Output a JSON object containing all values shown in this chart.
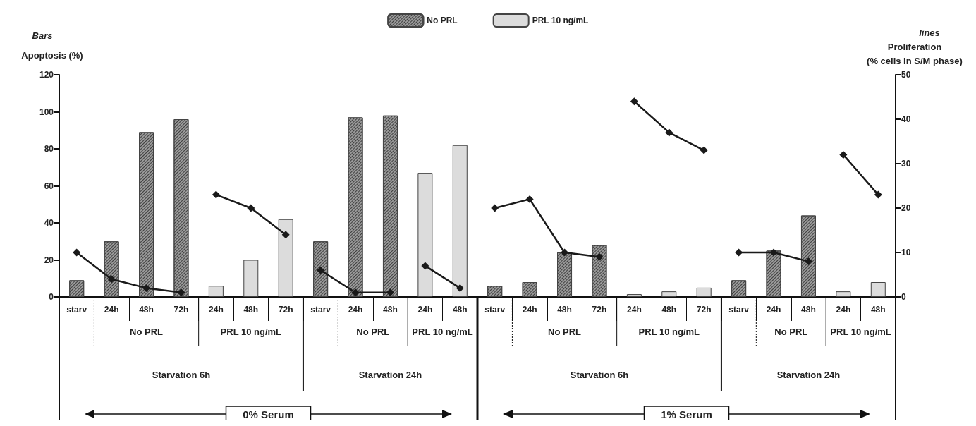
{
  "chart_data": {
    "type": "bar",
    "ylabel": "Apoptosis (%)",
    "y2label": "Proliferation\n(% cells in S/M phase)",
    "categories": [
      "starv",
      "24h",
      "48h",
      "72h",
      "24h",
      "48h",
      "72h",
      "starv",
      "24h",
      "48h",
      "24h",
      "48h",
      "starv",
      "24h",
      "48h",
      "72h",
      "24h",
      "48h",
      "72h",
      "starv",
      "24h",
      "48h",
      "24h",
      "48h"
    ],
    "series": [
      {
        "name": "No PRL",
        "color": "#9a9a9a",
        "values": [
          9,
          30,
          89,
          96,
          null,
          null,
          null,
          30,
          97,
          98,
          null,
          null,
          6,
          8,
          24,
          28,
          null,
          null,
          null,
          9,
          25,
          44,
          null,
          null
        ]
      },
      {
        "name": "PRL 10 ng/mL",
        "color": "#dcdcdc",
        "values": [
          null,
          null,
          null,
          null,
          6,
          20,
          42,
          null,
          null,
          null,
          67,
          82,
          null,
          null,
          null,
          null,
          1.5,
          3,
          5,
          null,
          null,
          null,
          3,
          8
        ]
      },
      {
        "type": "line",
        "axis": "y2",
        "color": "#1a1a1a",
        "values": [
          10,
          4,
          2,
          1,
          null,
          null,
          null,
          6,
          1,
          1,
          null,
          null,
          20,
          22,
          10,
          9,
          null,
          null,
          null,
          10,
          10,
          8,
          null,
          null
        ]
      },
      {
        "type": "line",
        "axis": "y2",
        "color": "#1a1a1a",
        "values": [
          null,
          null,
          null,
          null,
          23,
          20,
          14,
          null,
          null,
          null,
          7,
          2,
          null,
          null,
          null,
          null,
          44,
          37,
          33,
          null,
          null,
          null,
          32,
          23
        ]
      }
    ],
    "ylim": [
      0,
      120
    ],
    "yticks": [
      0,
      20,
      40,
      60,
      80,
      100,
      120
    ],
    "y2lim": [
      0,
      50
    ],
    "y2ticks": [
      0,
      10,
      20,
      30,
      40,
      50
    ],
    "marker": "diamond",
    "legend": "top",
    "annotations": [
      "Bars",
      "lines",
      "No PRL",
      "PRL 10 ng/mL",
      "Starvation 6h",
      "No PRL",
      "PRL 10 ng/mL",
      "Starvation 24h",
      "0% Serum",
      "No PRL",
      "PRL 10 ng/mL",
      "Starvation 6h",
      "No PRL",
      "PRL 10 ng/mL",
      "Starvation 24h",
      "1% Serum"
    ]
  }
}
